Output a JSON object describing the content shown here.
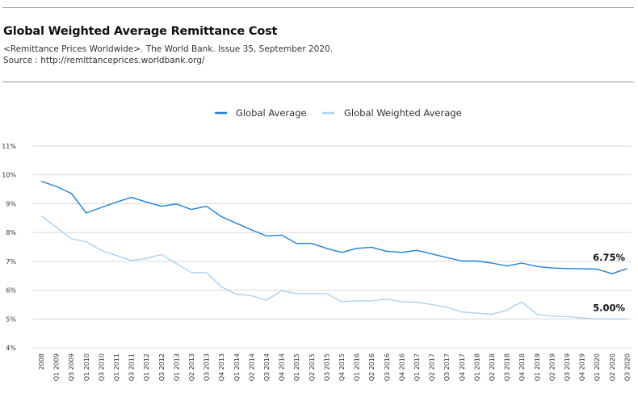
{
  "header": {
    "title": "Global Weighted Average Remittance Cost",
    "subtitle_line1": "<Remittance Prices Worldwide>. The World Bank. Issue 35, September 2020.",
    "subtitle_line2": "Source : http://remittanceprices.worldbank.org/"
  },
  "chart_data": {
    "type": "line",
    "title": "Global Weighted Average Remittance Cost",
    "xlabel": "",
    "ylabel": "",
    "ylim": [
      4,
      11
    ],
    "yticks": [
      "4%",
      "5%",
      "6%",
      "7%",
      "8%",
      "9%",
      "10%",
      "11%"
    ],
    "grid": true,
    "legend_position": "top",
    "categories": [
      "2008",
      "Q1 2009",
      "Q3 2009",
      "Q1 2010",
      "Q3 2010",
      "Q1 2011",
      "Q3 2011",
      "Q1 2012",
      "Q3 2012",
      "Q1 2013",
      "Q2 2013",
      "Q3 2013",
      "Q4 2013",
      "Q1 2014",
      "Q2 2014",
      "Q3 2014",
      "Q4 2014",
      "Q1 2015",
      "Q2 2015",
      "Q3 2015",
      "Q4 2015",
      "Q1 2016",
      "Q2 2016",
      "Q3 2016",
      "Q4 2016",
      "Q1 2017",
      "Q2 2017",
      "Q3 2017",
      "Q4 2017",
      "Q1 2018",
      "Q2 2018",
      "Q3 2018",
      "Q4 2018",
      "Q1 2019",
      "Q2 2019",
      "Q3 2019",
      "Q4 2019",
      "Q1 2020",
      "Q2 2020",
      "Q3 2020"
    ],
    "series": [
      {
        "name": "Global Average",
        "color": "#1a82d9",
        "values": [
          9.78,
          9.6,
          9.36,
          8.68,
          8.87,
          9.05,
          9.22,
          9.06,
          8.91,
          8.99,
          8.8,
          8.91,
          8.55,
          8.32,
          8.09,
          7.88,
          7.91,
          7.62,
          7.62,
          7.45,
          7.31,
          7.45,
          7.49,
          7.35,
          7.31,
          7.38,
          7.26,
          7.13,
          7.01,
          7.01,
          6.94,
          6.84,
          6.94,
          6.82,
          6.77,
          6.75,
          6.74,
          6.73,
          6.57,
          6.75
        ]
      },
      {
        "name": "Global Weighted Average",
        "color": "#a9d3f5",
        "values": [
          8.58,
          8.19,
          7.78,
          7.68,
          7.38,
          7.2,
          7.03,
          7.1,
          7.24,
          6.92,
          6.61,
          6.61,
          6.11,
          5.86,
          5.81,
          5.65,
          5.98,
          5.88,
          5.88,
          5.88,
          5.6,
          5.63,
          5.63,
          5.69,
          5.6,
          5.58,
          5.5,
          5.41,
          5.24,
          5.2,
          5.16,
          5.31,
          5.59,
          5.16,
          5.09,
          5.08,
          5.04,
          5.0,
          5.0,
          5.0
        ]
      }
    ],
    "end_labels": [
      "6.75%",
      "5.00%"
    ]
  }
}
